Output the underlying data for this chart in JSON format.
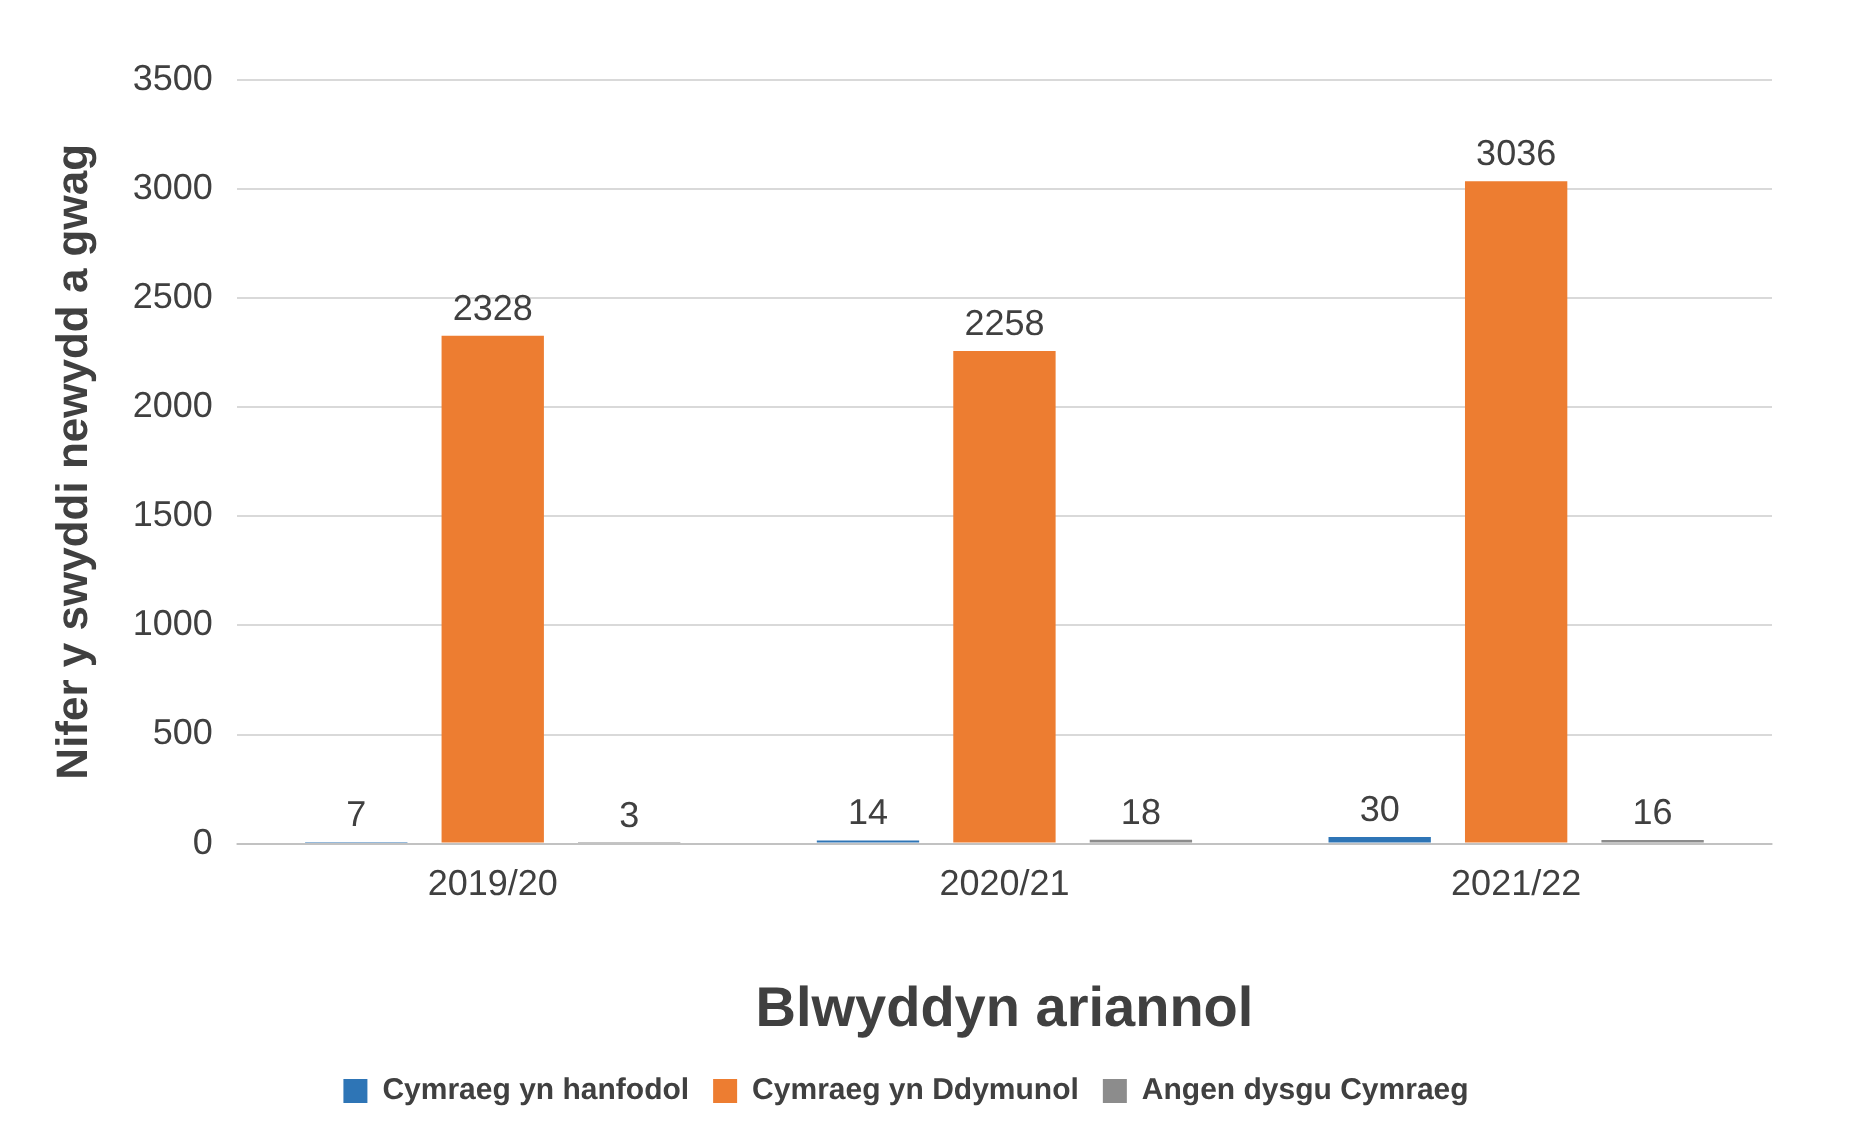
{
  "chart_data": {
    "type": "bar",
    "xlabel": "Blwyddyn ariannol",
    "ylabel": "Nifer y swyddi newydd a gwag",
    "categories": [
      "2019/20",
      "2020/21",
      "2021/22"
    ],
    "series": [
      {
        "name": "Cymraeg yn hanfodol",
        "color": "#2e75b6",
        "values": [
          7,
          14,
          30
        ]
      },
      {
        "name": "Cymraeg yn Ddymunol",
        "color": "#ed7d31",
        "values": [
          2328,
          2258,
          3036
        ]
      },
      {
        "name": "Angen dysgu Cymraeg",
        "color": "#8c8c8c",
        "values": [
          3,
          18,
          16
        ]
      }
    ],
    "ylim": [
      0,
      3500
    ],
    "yticks": [
      0,
      500,
      1000,
      1500,
      2000,
      2500,
      3000,
      3500
    ],
    "grid": "y",
    "legend": "bottom",
    "data_labels": true
  }
}
